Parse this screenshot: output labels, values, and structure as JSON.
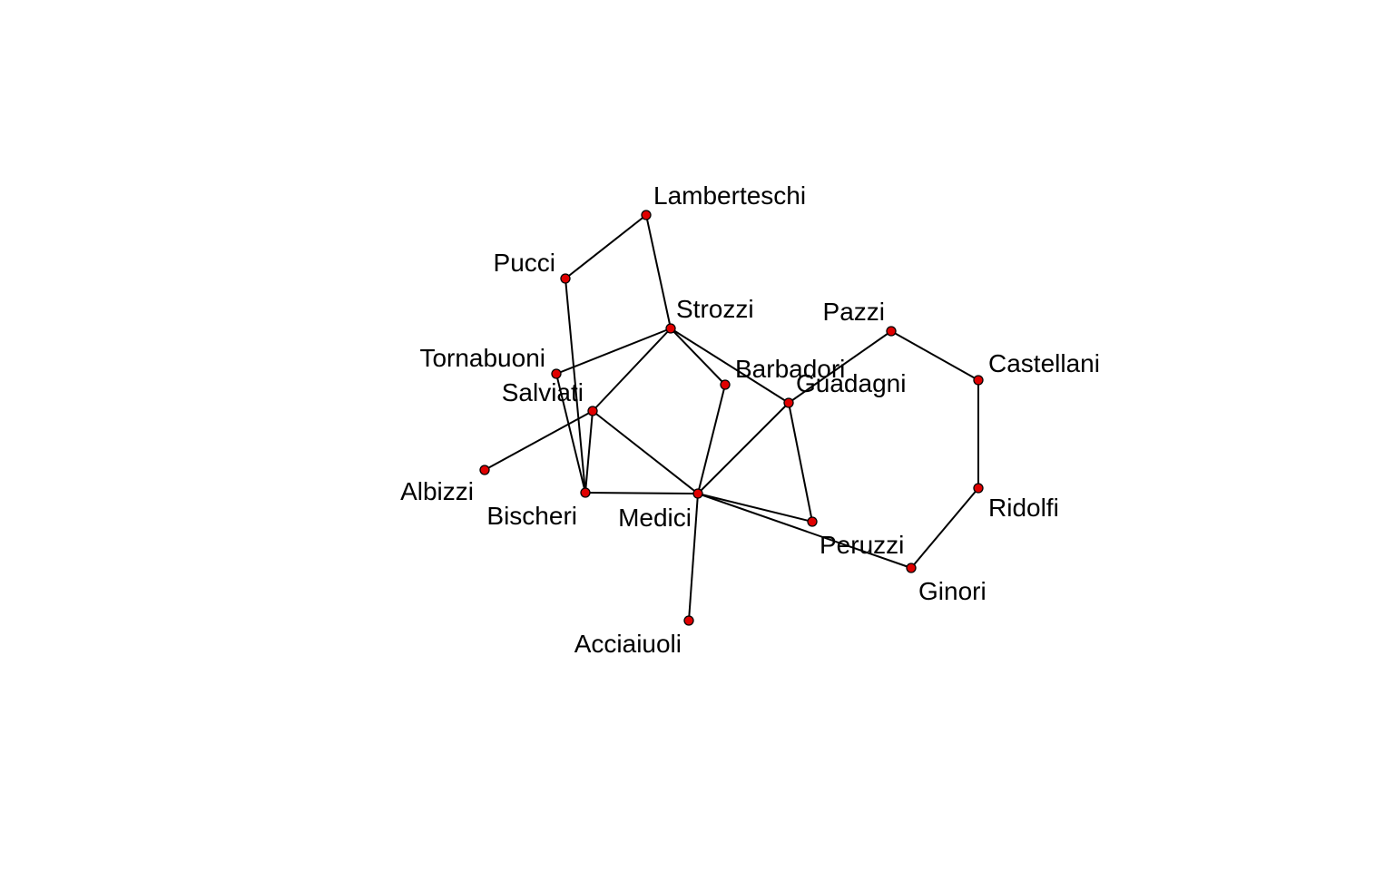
{
  "network": {
    "node_color": "#e00000",
    "edge_color": "#000000",
    "nodes": [
      {
        "id": "acciaiuoli",
        "label": "Acciaiuoli"
      },
      {
        "id": "albizzi",
        "label": "Albizzi"
      },
      {
        "id": "barbadori",
        "label": "Barbadori"
      },
      {
        "id": "bischeri",
        "label": "Bischeri"
      },
      {
        "id": "castellani",
        "label": "Castellani"
      },
      {
        "id": "ginori",
        "label": "Ginori"
      },
      {
        "id": "guadagni",
        "label": "Guadagni"
      },
      {
        "id": "lamberteschi",
        "label": "Lamberteschi"
      },
      {
        "id": "medici",
        "label": "Medici"
      },
      {
        "id": "pazzi",
        "label": "Pazzi"
      },
      {
        "id": "peruzzi",
        "label": "Peruzzi"
      },
      {
        "id": "pucci",
        "label": "Pucci"
      },
      {
        "id": "ridolfi",
        "label": "Ridolfi"
      },
      {
        "id": "salviati",
        "label": "Salviati"
      },
      {
        "id": "strozzi",
        "label": "Strozzi"
      },
      {
        "id": "tornabuoni",
        "label": "Tornabuoni"
      }
    ],
    "edges": [
      [
        "lamberteschi",
        "pucci"
      ],
      [
        "lamberteschi",
        "strozzi"
      ],
      [
        "pucci",
        "bischeri"
      ],
      [
        "strozzi",
        "tornabuoni"
      ],
      [
        "strozzi",
        "salviati"
      ],
      [
        "strozzi",
        "barbadori"
      ],
      [
        "strozzi",
        "guadagni"
      ],
      [
        "tornabuoni",
        "bischeri"
      ],
      [
        "salviati",
        "albizzi"
      ],
      [
        "salviati",
        "bischeri"
      ],
      [
        "salviati",
        "medici"
      ],
      [
        "bischeri",
        "medici"
      ],
      [
        "barbadori",
        "medici"
      ],
      [
        "guadagni",
        "medici"
      ],
      [
        "guadagni",
        "peruzzi"
      ],
      [
        "guadagni",
        "pazzi"
      ],
      [
        "medici",
        "acciaiuoli"
      ],
      [
        "medici",
        "peruzzi"
      ],
      [
        "medici",
        "ginori"
      ],
      [
        "pazzi",
        "castellani"
      ],
      [
        "castellani",
        "ridolfi"
      ],
      [
        "ridolfi",
        "ginori"
      ]
    ]
  }
}
